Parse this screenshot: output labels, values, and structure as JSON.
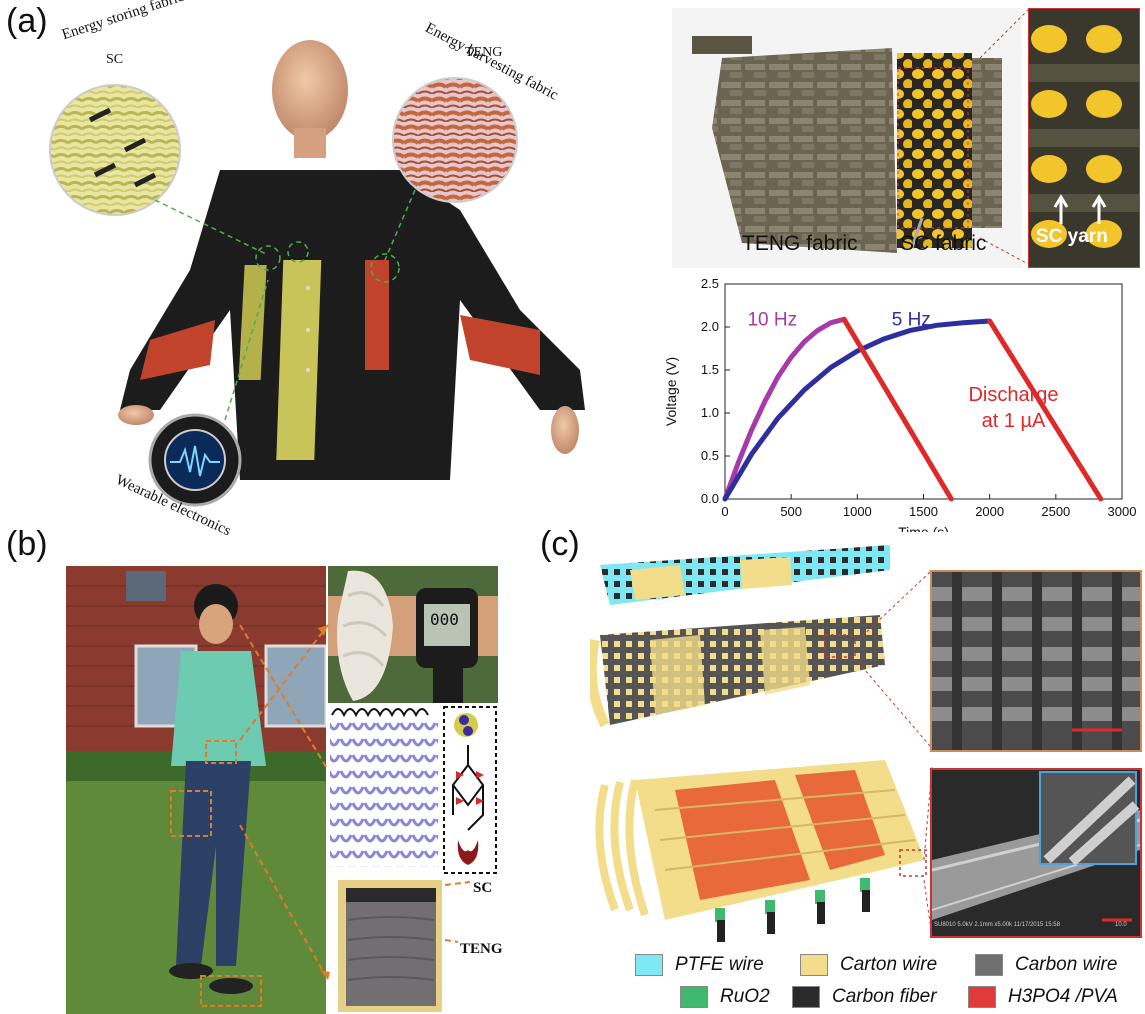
{
  "panels": {
    "a": {
      "label": "(a)",
      "circle_left_title": "Energy storing fabric",
      "circle_left_sub": "SC",
      "circle_right_title": "Energy harvesting fabric",
      "circle_right_sub": "TENG",
      "circle_bottom_title": "Wearable electronics",
      "photo_teng": "TENG fabric",
      "photo_sc": "SC fabric",
      "photo_scyarn": "SC yarn"
    },
    "b": {
      "label": "(b)",
      "watch_display": "000",
      "sc_label": "SC",
      "teng_label": "TENG"
    },
    "c": {
      "label": "(c)",
      "sem_caption": "SU8010 5.0kV 2.1mm x5.00k 11/17/2015 15:58",
      "sem_scale": "10.0"
    }
  },
  "legend": {
    "items": [
      {
        "name": "PTFE wire",
        "color": "#7ee8f4"
      },
      {
        "name": "Carton wire",
        "color": "#f3dc8a"
      },
      {
        "name": "Carbon wire",
        "color": "#707070"
      },
      {
        "name": "RuO2",
        "color": "#3fb870"
      },
      {
        "name": "Carbon fiber",
        "color": "#2a2a2a"
      },
      {
        "name": "H3PO4 /PVA",
        "color": "#e03b3b"
      }
    ]
  },
  "chart_data": {
    "type": "line",
    "xlabel": "Time (s)",
    "ylabel": "Voltage (V)",
    "xlim": [
      0,
      3000
    ],
    "ylim": [
      0,
      2.5
    ],
    "xticks": [
      0,
      500,
      1000,
      1500,
      2000,
      2500,
      3000
    ],
    "yticks": [
      0.0,
      0.5,
      1.0,
      1.5,
      2.0,
      2.5
    ],
    "series": [
      {
        "name": "10 Hz",
        "color": "#a63aa8",
        "x": [
          0,
          100,
          200,
          300,
          400,
          500,
          600,
          700,
          800,
          900
        ],
        "y": [
          0,
          0.42,
          0.8,
          1.13,
          1.42,
          1.65,
          1.83,
          1.96,
          2.05,
          2.09
        ]
      },
      {
        "name": "5 Hz",
        "color": "#2e2f9e",
        "x": [
          0,
          200,
          400,
          600,
          800,
          1000,
          1200,
          1400,
          1600,
          1800,
          2000
        ],
        "y": [
          0,
          0.52,
          0.94,
          1.27,
          1.53,
          1.72,
          1.86,
          1.96,
          2.02,
          2.05,
          2.07
        ]
      },
      {
        "name": "Discharge at 1 µA",
        "color": "#e02828",
        "x": [
          900,
          1710
        ],
        "y": [
          2.09,
          0
        ]
      },
      {
        "name": "",
        "color": "#e02828",
        "x": [
          2000,
          2840
        ],
        "y": [
          2.07,
          0
        ]
      }
    ],
    "annotations": [
      "10 Hz",
      "5 Hz",
      "Discharge",
      "at 1 µA"
    ]
  }
}
